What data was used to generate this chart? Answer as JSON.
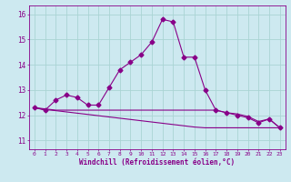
{
  "xlabel": "Windchill (Refroidissement éolien,°C)",
  "ylabel": "",
  "bg_color": "#cde9f0",
  "line_color": "#880088",
  "grid_color": "#aad4d4",
  "text_color": "#880088",
  "x_ticks": [
    0,
    1,
    2,
    3,
    4,
    5,
    6,
    7,
    8,
    9,
    10,
    11,
    12,
    13,
    14,
    15,
    16,
    17,
    18,
    19,
    20,
    21,
    22,
    23
  ],
  "y_ticks": [
    11,
    12,
    13,
    14,
    15,
    16
  ],
  "ylim": [
    10.65,
    16.35
  ],
  "xlim": [
    -0.5,
    23.5
  ],
  "hours": [
    0,
    1,
    2,
    3,
    4,
    5,
    6,
    7,
    8,
    9,
    10,
    11,
    12,
    13,
    14,
    15,
    16,
    17,
    18,
    19,
    20,
    21,
    22,
    23
  ],
  "temp_main": [
    12.3,
    12.2,
    12.6,
    12.8,
    12.7,
    12.4,
    12.4,
    13.1,
    13.8,
    14.1,
    14.4,
    14.9,
    15.8,
    15.7,
    14.3,
    14.3,
    13.0,
    12.2,
    12.1,
    12.0,
    11.9,
    11.7,
    11.85,
    11.5
  ],
  "temp_line2": [
    12.3,
    12.25,
    12.2,
    12.2,
    12.2,
    12.2,
    12.2,
    12.2,
    12.2,
    12.2,
    12.2,
    12.2,
    12.2,
    12.2,
    12.2,
    12.2,
    12.2,
    12.2,
    12.1,
    12.05,
    11.95,
    11.75,
    11.85,
    11.5
  ],
  "temp_line3": [
    12.3,
    12.22,
    12.18,
    12.13,
    12.08,
    12.03,
    11.98,
    11.93,
    11.88,
    11.83,
    11.78,
    11.73,
    11.68,
    11.63,
    11.58,
    11.53,
    11.5,
    11.5,
    11.5,
    11.5,
    11.5,
    11.5,
    11.5,
    11.5
  ],
  "marker": "D",
  "markersize": 2.5
}
